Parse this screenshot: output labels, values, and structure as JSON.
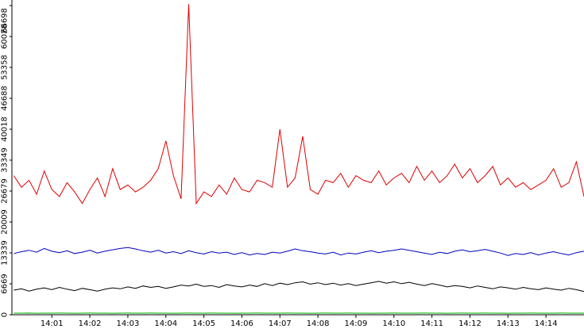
{
  "chart_data": {
    "type": "line",
    "x": [
      0,
      0.2,
      0.4,
      0.6,
      0.8,
      1,
      1.2,
      1.4,
      1.6,
      1.8,
      2,
      2.2,
      2.4,
      2.6,
      2.8,
      3,
      3.2,
      3.4,
      3.6,
      3.8,
      4,
      4.2,
      4.4,
      4.6,
      4.8,
      5,
      5.2,
      5.4,
      5.6,
      5.8,
      6,
      6.2,
      6.4,
      6.6,
      6.8,
      7,
      7.2,
      7.4,
      7.6,
      7.8,
      8,
      8.2,
      8.4,
      8.6,
      8.8,
      9,
      9.2,
      9.4,
      9.6,
      9.8,
      10,
      10.2,
      10.4,
      10.6,
      10.8,
      11,
      11.2,
      11.4,
      11.6,
      11.8,
      12,
      12.2,
      12.4,
      12.6,
      12.8,
      13,
      13.2,
      13.4,
      13.6,
      13.8,
      14,
      14.2,
      14.4,
      14.6,
      14.8,
      15
    ],
    "xlim": [
      -0.05,
      15
    ],
    "xticks": [
      {
        "value": 1,
        "label": "14:01"
      },
      {
        "value": 2,
        "label": "14:02"
      },
      {
        "value": 3,
        "label": "14:03"
      },
      {
        "value": 4,
        "label": "14:04"
      },
      {
        "value": 5,
        "label": "14:05"
      },
      {
        "value": 6,
        "label": "14:06"
      },
      {
        "value": 7,
        "label": "14:07"
      },
      {
        "value": 8,
        "label": "14:08"
      },
      {
        "value": 9,
        "label": "14:09"
      },
      {
        "value": 10,
        "label": "14:10"
      },
      {
        "value": 11,
        "label": "14:11"
      },
      {
        "value": 12,
        "label": "14:12"
      },
      {
        "value": 13,
        "label": "14:13"
      },
      {
        "value": 14,
        "label": "14:14"
      }
    ],
    "ylim": [
      0,
      67900
    ],
    "yticks": [
      0,
      6669,
      13339,
      20009,
      26679,
      33349,
      40018,
      46688,
      53358,
      60028,
      66698
    ],
    "series": [
      {
        "color": "#e00000",
        "values": [
          30000,
          27500,
          29000,
          26000,
          31000,
          27000,
          25500,
          28500,
          26500,
          24000,
          27000,
          29500,
          25500,
          31500,
          27000,
          28000,
          26500,
          27500,
          29000,
          31500,
          37500,
          30000,
          25000,
          67000,
          24000,
          26500,
          25500,
          28000,
          26000,
          29500,
          27000,
          26500,
          29000,
          28500,
          27500,
          40000,
          27500,
          29500,
          38500,
          27000,
          26000,
          29000,
          28500,
          30500,
          27500,
          30000,
          29000,
          28500,
          31000,
          28000,
          29500,
          30500,
          28500,
          32000,
          29000,
          31000,
          28500,
          30000,
          32500,
          29500,
          31500,
          28500,
          30000,
          32000,
          28000,
          29500,
          27500,
          28500,
          27000,
          28000,
          29000,
          31500,
          27500,
          28500,
          33000,
          25500
        ]
      },
      {
        "color": "#0000c0",
        "values": [
          13200,
          13600,
          13900,
          13500,
          14300,
          13700,
          13400,
          13800,
          13200,
          13500,
          13900,
          13300,
          13700,
          14000,
          14300,
          14500,
          14200,
          13800,
          13500,
          13900,
          13300,
          13600,
          13200,
          13800,
          13400,
          13100,
          13600,
          13300,
          13500,
          13000,
          13400,
          12900,
          13200,
          13000,
          13500,
          13300,
          13700,
          14200,
          13800,
          13600,
          13300,
          13100,
          13500,
          12900,
          13300,
          13100,
          13500,
          13800,
          13400,
          13700,
          13900,
          14200,
          13900,
          13600,
          13300,
          13000,
          13500,
          13200,
          13700,
          14000,
          13600,
          13800,
          14100,
          13700,
          13300,
          12800,
          13200,
          13000,
          13400,
          12900,
          13300,
          13600,
          13200,
          12900,
          13400,
          13700
        ]
      },
      {
        "color": "#000000",
        "values": [
          5300,
          5600,
          5100,
          5500,
          5800,
          5400,
          5900,
          5500,
          5200,
          5700,
          5400,
          5100,
          5500,
          5800,
          5600,
          6000,
          5700,
          6200,
          5900,
          6100,
          5700,
          6000,
          6400,
          6200,
          6600,
          6100,
          6300,
          5900,
          6500,
          6200,
          6000,
          6400,
          6100,
          6700,
          6300,
          6800,
          6500,
          6900,
          7100,
          6600,
          6900,
          6500,
          6800,
          6400,
          6700,
          6300,
          6600,
          6900,
          7200,
          6800,
          7100,
          6700,
          7000,
          6600,
          6300,
          6700,
          6400,
          6000,
          6300,
          6100,
          5800,
          6200,
          5900,
          5600,
          6000,
          5800,
          5500,
          5900,
          5600,
          5400,
          5800,
          5500,
          5300,
          5700,
          5400,
          5000
        ]
      },
      {
        "color": "#00b000",
        "values": [
          350,
          340,
          360,
          330,
          350,
          340,
          360,
          350,
          330,
          350,
          360,
          340,
          350,
          330,
          350,
          360,
          340,
          350,
          360,
          340,
          350,
          330,
          350,
          360,
          340,
          350,
          360,
          340,
          350,
          330,
          350,
          340,
          360,
          350,
          340,
          350,
          360,
          340,
          350,
          330,
          350,
          360,
          340,
          350,
          360,
          340,
          350,
          330,
          350,
          340,
          360,
          350,
          340,
          350,
          360,
          340,
          350,
          330,
          350,
          360,
          340,
          350,
          360,
          340,
          350,
          330,
          350,
          340,
          360,
          350,
          340,
          350,
          360,
          340,
          350,
          340
        ]
      }
    ]
  }
}
